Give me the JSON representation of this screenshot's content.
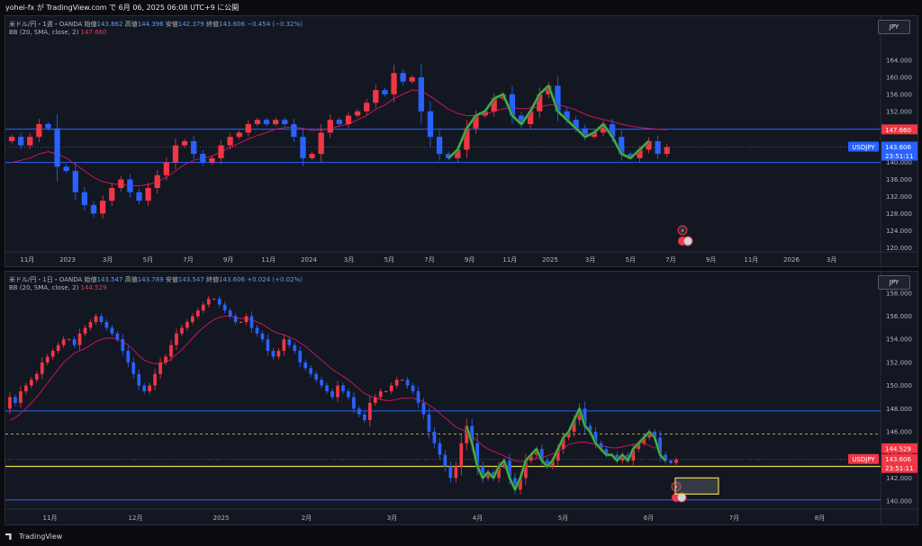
{
  "header": {
    "text": "yohei-fx が TradingView.com で 6月 06, 2025 06:08 UTC+9 に公開"
  },
  "footer": {
    "logo": "TradingView"
  },
  "colors": {
    "up": "#f23645",
    "down": "#2962ff",
    "bb": "#c2185b",
    "pattern": "#4caf50",
    "hline": "#2962ff",
    "support": "#e8d44d",
    "bg": "#131722"
  },
  "chart_data": [
    {
      "type": "candlestick",
      "symbol_line": "米ドル/円・1週・OANDA",
      "ohlc": [
        {
          "label": "始値",
          "value": "143.862"
        },
        {
          "label": "高値",
          "value": "144.396"
        },
        {
          "label": "安値",
          "value": "142.379"
        },
        {
          "label": "終値",
          "value": "143.606"
        }
      ],
      "change": "−0.454 (−0.32%)",
      "indicator": "BB (20, SMA, close, 2)",
      "indicator_value": "147.660",
      "currency": "JPY",
      "ylim": [
        119,
        168
      ],
      "y_ticks": [
        "164.000",
        "160.000",
        "156.000",
        "152.000",
        "148.000",
        "144.000",
        "140.000",
        "136.000",
        "132.000",
        "128.000",
        "124.000",
        "120.000"
      ],
      "x_ticks": [
        "11月",
        "2023",
        "3月",
        "5月",
        "7月",
        "9月",
        "11月",
        "2024",
        "3月",
        "5月",
        "7月",
        "9月",
        "11月",
        "2025",
        "3月",
        "5月",
        "7月",
        "9月",
        "11月",
        "2026",
        "3月"
      ],
      "price_tags": [
        {
          "text": "147.660",
          "value": 147.66,
          "color": "#f23645"
        },
        {
          "text": "USDJPY",
          "value": 143.606,
          "color": "#2962ff"
        },
        {
          "text": "143.606",
          "value": 143.606,
          "color": "#2962ff"
        },
        {
          "text": "23:51:11",
          "value": 143.606,
          "color": "#2962ff"
        }
      ],
      "hlines": [
        147.8,
        140.0
      ],
      "series": [
        {
          "name": "close",
          "values": [
            146,
            144,
            146,
            149,
            148,
            139,
            138,
            133,
            130,
            128,
            131,
            134,
            136,
            133,
            131,
            134,
            137,
            140,
            144,
            145,
            142,
            140,
            141,
            144,
            146,
            147,
            149,
            150,
            149,
            150,
            149,
            146,
            141,
            142,
            147,
            150,
            149,
            151,
            152,
            154,
            157,
            156,
            161,
            159,
            160,
            152,
            146,
            142,
            141,
            143,
            148,
            151,
            152,
            155,
            156,
            151,
            149,
            152,
            156,
            158,
            152,
            150,
            148,
            146,
            147,
            149,
            146,
            142,
            141,
            143,
            145,
            142,
            143.6
          ]
        }
      ],
      "bb_mid": [
        140,
        140.5,
        141,
        142,
        142.5,
        142,
        141,
        139.5,
        138,
        136.5,
        135.5,
        135,
        134.8,
        134.6,
        134.5,
        134.8,
        135.5,
        136.5,
        138,
        139.5,
        140.5,
        141,
        141.5,
        142.5,
        143.5,
        144.5,
        145.5,
        146.3,
        147,
        147.8,
        148.2,
        148.3,
        148,
        147.5,
        147.6,
        148,
        148.5,
        149,
        150,
        151,
        152.5,
        153.5,
        155,
        156,
        157,
        156.8,
        155.5,
        154,
        152.5,
        151.5,
        151,
        151,
        151.3,
        152,
        152.6,
        152.8,
        152.6,
        152.7,
        153,
        153.5,
        153.6,
        153,
        152.3,
        151.3,
        150.6,
        150.1,
        149.6,
        149,
        148.5,
        148.2,
        148,
        147.8,
        147.66
      ]
    },
    {
      "type": "candlestick",
      "symbol_line": "米ドル/円・1日・OANDA",
      "ohlc": [
        {
          "label": "始値",
          "value": "143.547"
        },
        {
          "label": "高値",
          "value": "143.789"
        },
        {
          "label": "安値",
          "value": "143.547"
        },
        {
          "label": "終値",
          "value": "143.606"
        }
      ],
      "change": "+0.024 (+0.02%)",
      "indicator": "BB (20, SMA, close, 2)",
      "indicator_value": "144.529",
      "currency": "JPY",
      "ylim": [
        139.3,
        158.3
      ],
      "y_ticks": [
        "158.000",
        "156.000",
        "154.000",
        "152.000",
        "150.000",
        "148.000",
        "146.000",
        "144.000",
        "142.000",
        "140.000"
      ],
      "x_ticks": [
        "11月",
        "12月",
        "2025",
        "2月",
        "3月",
        "4月",
        "5月",
        "6月",
        "7月",
        "8月"
      ],
      "price_tags": [
        {
          "text": "144.529",
          "value": 144.529,
          "color": "#f23645"
        },
        {
          "text": "USDJPY",
          "value": 143.606,
          "color": "#f23645"
        },
        {
          "text": "143.606",
          "value": 143.606,
          "color": "#f23645"
        },
        {
          "text": "23:51:11",
          "value": 143.606,
          "color": "#f23645"
        }
      ],
      "hlines": [
        147.8,
        140.1
      ],
      "dashed_line": 145.8,
      "support_line": 143.0,
      "series": [
        {
          "name": "close",
          "values": [
            149,
            148.5,
            149.5,
            150,
            150.5,
            151,
            152,
            152.5,
            153,
            153.5,
            154,
            154,
            153.5,
            154.5,
            155,
            155.5,
            156,
            155.5,
            155,
            154.5,
            154,
            153,
            152,
            151,
            150,
            149.5,
            150,
            151,
            152,
            152.5,
            153.5,
            154.5,
            155,
            155.5,
            156,
            156.5,
            157,
            157.5,
            157.5,
            157,
            156.5,
            156,
            155.5,
            155.5,
            156,
            155,
            154.5,
            154,
            153,
            152.5,
            153,
            154,
            153.5,
            153,
            152,
            151.5,
            151,
            150.5,
            150,
            149.5,
            149,
            150,
            149.5,
            149,
            148,
            147.5,
            147,
            148.5,
            149,
            149.5,
            149.5,
            150,
            150.5,
            150.5,
            150,
            149.5,
            148.5,
            147.5,
            146,
            145,
            144,
            143,
            142,
            143,
            145,
            146.5,
            145,
            143,
            142,
            142.5,
            142,
            143,
            143.5,
            142,
            141,
            142,
            143.5,
            144,
            144.5,
            143.5,
            143,
            143.5,
            144.5,
            145.5,
            146,
            147,
            148,
            146.5,
            146,
            145,
            144.5,
            144,
            144,
            143.5,
            144,
            143.5,
            144.5,
            145,
            145.5,
            146,
            145.5,
            144,
            143.5,
            143.3,
            143.6
          ]
        }
      ],
      "bb_mid": [
        147,
        147.2,
        147.6,
        148,
        148.5,
        149,
        149.6,
        150.2,
        150.8,
        151.4,
        152,
        152.4,
        152.8,
        153,
        153.2,
        153.5,
        153.8,
        154,
        154.1,
        154.1,
        154,
        153.8,
        153.5,
        153.1,
        152.6,
        152.2,
        152,
        151.9,
        151.9,
        152,
        152.3,
        152.7,
        153.1,
        153.6,
        154.1,
        154.6,
        155,
        155.4,
        155.7,
        155.9,
        156,
        156,
        155.9,
        155.8,
        155.8,
        155.7,
        155.5,
        155.3,
        155,
        154.7,
        154.5,
        154.4,
        154.2,
        154,
        153.7,
        153.4,
        153,
        152.6,
        152.2,
        151.8,
        151.4,
        151.1,
        150.8,
        150.5,
        150.1,
        149.7,
        149.3,
        149.1,
        148.9,
        148.8,
        148.7,
        148.7,
        148.8,
        148.9,
        148.9,
        148.9,
        148.8,
        148.6,
        148.3,
        148,
        147.6,
        147.2,
        146.8,
        146.4,
        146.2,
        146,
        145.6,
        145.2,
        144.8,
        144.5,
        144.3,
        144.1,
        143.9,
        143.7,
        143.5,
        143.4,
        143.5,
        143.6,
        143.7,
        143.8,
        143.9,
        144.1,
        144.3,
        144.6,
        144.9,
        145,
        145.1,
        145.1,
        145,
        144.9,
        144.8,
        144.7,
        144.6,
        144.6,
        144.7,
        144.8,
        144.9,
        145,
        145,
        144.8,
        144.6,
        144.53
      ]
    }
  ]
}
